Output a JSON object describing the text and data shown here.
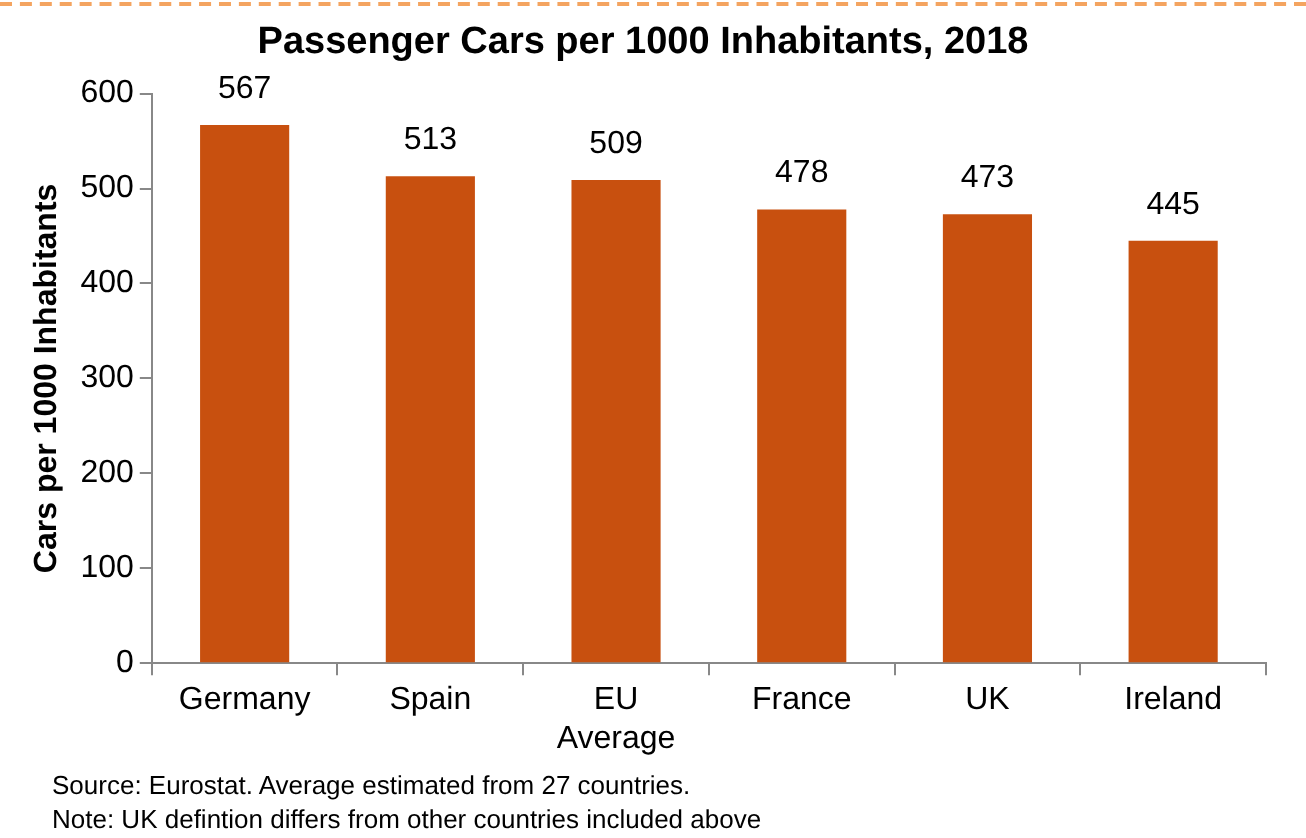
{
  "chart_data": {
    "type": "bar",
    "title": "Passenger Cars per 1000 Inhabitants, 2018",
    "ylabel": "Cars per 1000 Inhabitants",
    "categories": [
      "Germany",
      "Spain",
      "EU Average",
      "France",
      "UK",
      "Ireland"
    ],
    "values": [
      567,
      513,
      509,
      478,
      473,
      445
    ],
    "color": "#c8500f",
    "ylim": [
      0,
      600
    ],
    "yticks": [
      0,
      100,
      200,
      300,
      400,
      500,
      600
    ],
    "grid": false,
    "data_labels": true,
    "legend": false,
    "annotations": [
      "Source: Eurostat. Average estimated from 27 countries.",
      "Note: UK defintion differs from other countries included above"
    ]
  }
}
